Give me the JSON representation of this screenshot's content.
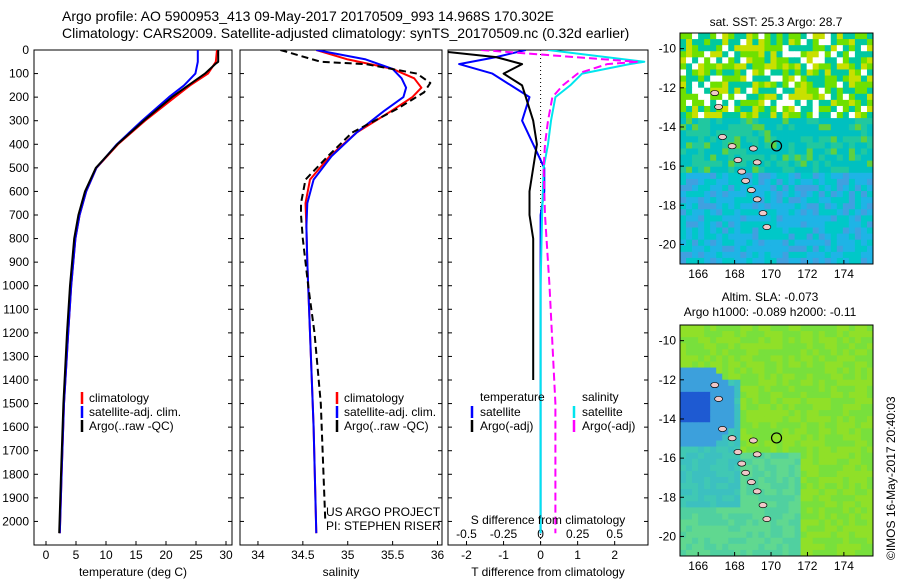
{
  "header": {
    "line1": "Argo profile: AO 5900953_413 09-May-2017 20170509_993 14.968S 170.302E",
    "line2": "Climatology: CARS2009. Satellite-adjusted climatology: synTS_20170509.nc (0.32d earlier)"
  },
  "colors": {
    "climatology": "#ff0000",
    "satellite": "#0000ff",
    "argo": "#000000",
    "sal_satellite": "#00e5ee",
    "sal_argo": "#ff00ff"
  },
  "depth_ticks": [
    "0",
    "100",
    "200",
    "300",
    "400",
    "500",
    "600",
    "700",
    "800",
    "900",
    "1000",
    "1100",
    "1200",
    "1300",
    "1400",
    "1500",
    "1600",
    "1700",
    "1800",
    "1900",
    "2000"
  ],
  "temperature_panel": {
    "xlabel": "temperature (deg C)",
    "xticks": [
      "0",
      "5",
      "10",
      "15",
      "20",
      "25",
      "30"
    ],
    "legend": [
      "climatology",
      "satellite-adj. clim.",
      "Argo(..raw -QC)"
    ]
  },
  "salinity_panel": {
    "xlabel": "salinity",
    "xticks": [
      "34",
      "34.5",
      "35",
      "35.5",
      "36"
    ],
    "legend": [
      "climatology",
      "satellite-adj. clim.",
      "Argo(..raw -QC)"
    ],
    "credit1": "US ARGO PROJECT",
    "credit2": "PI: STEPHEN RISER"
  },
  "difference_panel": {
    "top_label": "S difference from climatology",
    "top_ticks": [
      "-0.5",
      "-0.25",
      "0",
      "0.25",
      "0.5"
    ],
    "xlabel": "T difference from climatology",
    "xticks": [
      "-2",
      "-1",
      "0",
      "1",
      "2"
    ],
    "legend_left_title": "temperature",
    "legend_left": [
      "satellite",
      "Argo(-adj)"
    ],
    "legend_right_title": "salinity",
    "legend_right": [
      "satellite",
      "Argo(-adj)"
    ]
  },
  "map_sst": {
    "title": "sat. SST: 25.3 Argo: 28.7",
    "yticks": [
      "-10",
      "-12",
      "-14",
      "-16",
      "-18",
      "-20"
    ],
    "xticks": [
      "166",
      "168",
      "170",
      "172",
      "174"
    ]
  },
  "map_sla": {
    "title1": "Altim. SLA: -0.073",
    "title2": "Argo h1000: -0.089 h2000: -0.11",
    "yticks": [
      "-10",
      "-12",
      "-14",
      "-16",
      "-18",
      "-20"
    ],
    "xticks": [
      "166",
      "168",
      "170",
      "172",
      "174"
    ]
  },
  "stamp": "©IMOS 16-May-2017 20:40:03",
  "chart_data": [
    {
      "type": "line",
      "xlabel": "temperature (deg C)",
      "ylabel": "",
      "xlim": [
        -2,
        31
      ],
      "ylim": [
        2100,
        0
      ],
      "series": [
        {
          "name": "climatology",
          "depth": [
            0,
            50,
            100,
            150,
            200,
            300,
            400,
            500,
            600,
            700,
            800,
            1000,
            1200,
            1500,
            1800,
            2050
          ],
          "values": [
            28.5,
            28.3,
            27.0,
            24.0,
            21.5,
            16.5,
            12.0,
            8.4,
            6.7,
            5.6,
            4.9,
            4.2,
            3.7,
            3.0,
            2.6,
            2.3
          ]
        },
        {
          "name": "satellite-adj. clim.",
          "depth": [
            0,
            50,
            100,
            150,
            200,
            300,
            400,
            500,
            600,
            700,
            800,
            1000,
            1200,
            1500,
            1800,
            2050
          ],
          "values": [
            25.3,
            25.3,
            24.9,
            23.0,
            20.5,
            16.0,
            11.8,
            8.4,
            6.7,
            5.6,
            4.9,
            4.2,
            3.7,
            3.0,
            2.6,
            2.3
          ]
        },
        {
          "name": "Argo(..raw -QC)",
          "depth": [
            0,
            50,
            60,
            100,
            150,
            200,
            300,
            400,
            500,
            600,
            700,
            800,
            1000,
            1200,
            1500,
            1800,
            2050
          ],
          "values": [
            28.7,
            28.7,
            28.2,
            26.5,
            23.7,
            21.0,
            16.3,
            11.9,
            8.3,
            6.5,
            5.4,
            4.7,
            4.0,
            3.5,
            2.9,
            2.5,
            2.2
          ]
        }
      ]
    },
    {
      "type": "line",
      "xlabel": "salinity",
      "ylabel": "",
      "xlim": [
        33.8,
        36.05
      ],
      "ylim": [
        2100,
        0
      ],
      "series": [
        {
          "name": "climatology",
          "depth": [
            0,
            40,
            80,
            120,
            160,
            200,
            260,
            350,
            450,
            550,
            650,
            750,
            900,
            1100,
            1300,
            1600,
            1900,
            2050
          ],
          "values": [
            34.65,
            35.0,
            35.5,
            35.74,
            35.82,
            35.72,
            35.48,
            35.1,
            34.8,
            34.58,
            34.53,
            34.54,
            34.55,
            34.57,
            34.59,
            34.62,
            34.64,
            34.65
          ]
        },
        {
          "name": "satellite-adj. clim.",
          "depth": [
            0,
            40,
            80,
            120,
            160,
            200,
            260,
            350,
            450,
            550,
            650,
            750,
            900,
            1100,
            1300,
            1600,
            1900,
            2050
          ],
          "values": [
            34.65,
            35.2,
            35.5,
            35.6,
            35.65,
            35.62,
            35.4,
            35.1,
            34.82,
            34.62,
            34.55,
            34.54,
            34.55,
            34.57,
            34.59,
            34.62,
            34.64,
            34.65
          ]
        },
        {
          "name": "Argo(..raw -QC)",
          "depth": [
            0,
            50,
            60,
            100,
            140,
            180,
            250,
            350,
            450,
            550,
            650,
            700,
            800,
            1000,
            1200,
            1500,
            1800,
            2000
          ],
          "values": [
            34.25,
            34.7,
            35.2,
            35.77,
            35.92,
            35.85,
            35.55,
            35.05,
            34.78,
            34.53,
            34.48,
            34.48,
            34.5,
            34.56,
            34.63,
            34.7,
            34.73,
            34.75
          ]
        }
      ]
    },
    {
      "type": "line",
      "xlabel": "T difference from climatology",
      "x2label": "S difference from climatology",
      "xlim": [
        -2.5,
        2.9
      ],
      "x2lim": [
        -0.625,
        0.725
      ],
      "ylim": [
        2100,
        0
      ],
      "series": [
        {
          "name": "temperature satellite",
          "depth": [
            0,
            30,
            60,
            100,
            150,
            200,
            300,
            400,
            500,
            600,
            700,
            1000,
            2050
          ],
          "values": [
            -0.4,
            -1.2,
            -2.2,
            -1.3,
            -0.8,
            -0.3,
            -0.5,
            -0.2,
            0.1,
            0.1,
            0,
            0,
            0
          ]
        },
        {
          "name": "temperature Argo(-adj)",
          "depth": [
            0,
            30,
            60,
            100,
            150,
            200,
            300,
            400,
            500,
            600,
            700,
            800,
            1000,
            1400
          ],
          "values": [
            -3.0,
            -1.2,
            -0.5,
            -1.0,
            -0.5,
            -0.4,
            -0.2,
            -0.1,
            -0.2,
            -0.3,
            -0.3,
            -0.2,
            -0.2,
            -0.2
          ]
        },
        {
          "name": "salinity satellite",
          "depth": [
            0,
            50,
            60,
            100,
            150,
            200,
            300,
            400,
            500,
            700,
            1000,
            1500,
            2050
          ],
          "values": [
            0.05,
            0.7,
            0.6,
            0.28,
            0.2,
            0.1,
            0.07,
            0.05,
            0.02,
            0.01,
            0.0,
            0.0,
            0.0
          ]
        },
        {
          "name": "salinity Argo(-adj)",
          "depth": [
            0,
            50,
            60,
            100,
            150,
            200,
            300,
            400,
            500,
            700,
            1000,
            1500,
            2050
          ],
          "values": [
            -0.4,
            0.65,
            0.45,
            0.25,
            0.15,
            0.08,
            0.05,
            0.03,
            0.02,
            0.03,
            0.06,
            0.1,
            0.1
          ]
        }
      ]
    }
  ]
}
